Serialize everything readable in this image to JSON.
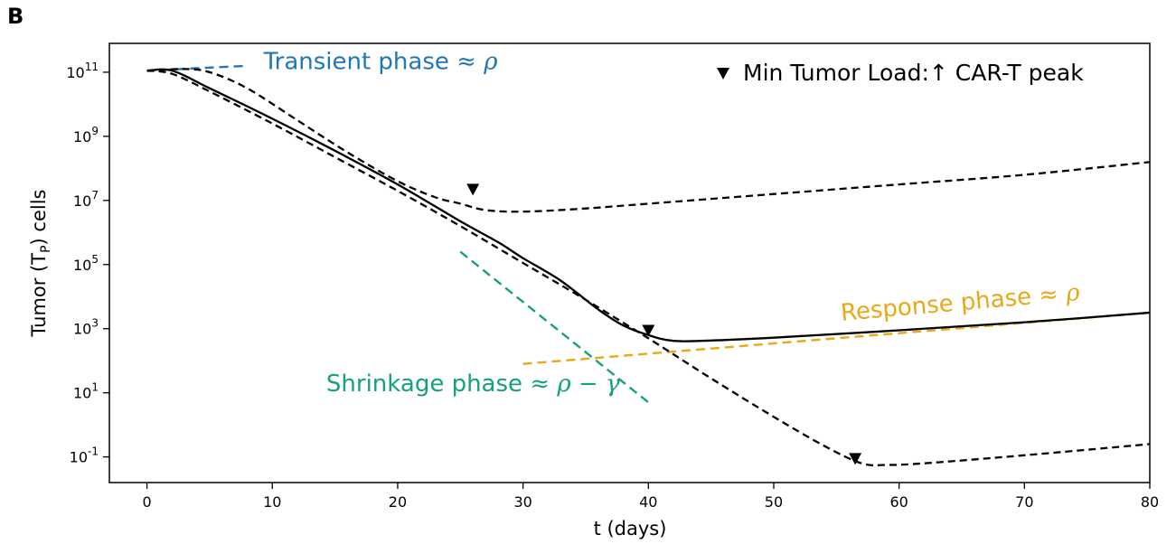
{
  "panel_label": "B",
  "chart_data": {
    "type": "line",
    "xlabel": "t (days)",
    "ylabel": "Tumor (T",
    "ylabel_sub": "P",
    "ylabel_tail": ") cells",
    "xlim": [
      -3,
      80
    ],
    "ylim_log10": [
      -1.8,
      11.9
    ],
    "yscale": "log",
    "x_ticks": [
      0,
      10,
      20,
      30,
      40,
      50,
      60,
      70,
      80
    ],
    "y_ticks": [
      {
        "exp": -1,
        "base": "10",
        "sup": "-1"
      },
      {
        "exp": 1,
        "base": "10",
        "sup": "1"
      },
      {
        "exp": 3,
        "base": "10",
        "sup": "3"
      },
      {
        "exp": 5,
        "base": "10",
        "sup": "5"
      },
      {
        "exp": 7,
        "base": "10",
        "sup": "7"
      },
      {
        "exp": 9,
        "base": "10",
        "sup": "9"
      },
      {
        "exp": 11,
        "base": "10",
        "sup": "11"
      }
    ],
    "grid": false,
    "series": [
      {
        "style": "solid",
        "color": "#000000",
        "points": [
          [
            0,
            11.05
          ],
          [
            2,
            11.05
          ],
          [
            5,
            10.5
          ],
          [
            10,
            9.55
          ],
          [
            15,
            8.55
          ],
          [
            20,
            7.5
          ],
          [
            25,
            6.35
          ],
          [
            28,
            5.7
          ],
          [
            30,
            5.2
          ],
          [
            33,
            4.5
          ],
          [
            36,
            3.6
          ],
          [
            38,
            3.1
          ],
          [
            40,
            2.8
          ],
          [
            42,
            2.62
          ],
          [
            45,
            2.63
          ],
          [
            50,
            2.72
          ],
          [
            60,
            2.95
          ],
          [
            70,
            3.2
          ],
          [
            80,
            3.5
          ]
        ]
      },
      {
        "style": "dashed",
        "color": "#000000",
        "points": [
          [
            0,
            11.05
          ],
          [
            3,
            11.1
          ],
          [
            5,
            11.0
          ],
          [
            8,
            10.5
          ],
          [
            12,
            9.5
          ],
          [
            16,
            8.5
          ],
          [
            20,
            7.6
          ],
          [
            23,
            7.1
          ],
          [
            25,
            6.9
          ],
          [
            27,
            6.7
          ],
          [
            30,
            6.65
          ],
          [
            35,
            6.75
          ],
          [
            40,
            6.9
          ],
          [
            50,
            7.2
          ],
          [
            60,
            7.5
          ],
          [
            70,
            7.8
          ],
          [
            80,
            8.2
          ]
        ]
      },
      {
        "style": "dashed",
        "color": "#000000",
        "points": [
          [
            0,
            11.05
          ],
          [
            2,
            10.95
          ],
          [
            5,
            10.4
          ],
          [
            10,
            9.4
          ],
          [
            15,
            8.35
          ],
          [
            20,
            7.3
          ],
          [
            25,
            6.2
          ],
          [
            30,
            5.05
          ],
          [
            35,
            3.9
          ],
          [
            40,
            2.7
          ],
          [
            45,
            1.45
          ],
          [
            50,
            0.25
          ],
          [
            54,
            -0.65
          ],
          [
            57,
            -1.2
          ],
          [
            59,
            -1.25
          ],
          [
            62,
            -1.2
          ],
          [
            70,
            -0.95
          ],
          [
            80,
            -0.6
          ]
        ]
      }
    ],
    "fit_lines": [
      {
        "name": "transient",
        "color": "#1f77b4",
        "points": [
          [
            0,
            11.05
          ],
          [
            8,
            11.2
          ]
        ]
      },
      {
        "name": "shrinkage",
        "color": "#17a07f",
        "points": [
          [
            25,
            5.4
          ],
          [
            40,
            0.7
          ]
        ]
      },
      {
        "name": "response",
        "color": "#e8a817",
        "points": [
          [
            30,
            1.9
          ],
          [
            80,
            3.5
          ]
        ]
      }
    ],
    "markers": [
      [
        26,
        7.35
      ],
      [
        40,
        2.95
      ],
      [
        56.5,
        -1.05
      ]
    ],
    "annotations": [
      {
        "name": "transient",
        "text": "Transient phase ",
        "math": "≈ ρ",
        "color": "#1f77b4",
        "x": 9.3,
        "y": 11.1,
        "rotate": 0
      },
      {
        "name": "shrinkage",
        "text": "Shrinkage phase ",
        "math": "≈ ρ − γ",
        "color": "#17a07f",
        "x": 14.3,
        "y": 1.05,
        "rotate": 0
      },
      {
        "name": "response",
        "text": "Response phase ",
        "math": "≈ ρ",
        "color": "#e8a817",
        "x": 55.4,
        "y": 3.25,
        "rotate": -5
      }
    ],
    "legend": {
      "placement": "top-right",
      "label": "Min Tumor Load:↑ CAR-T peak"
    }
  }
}
